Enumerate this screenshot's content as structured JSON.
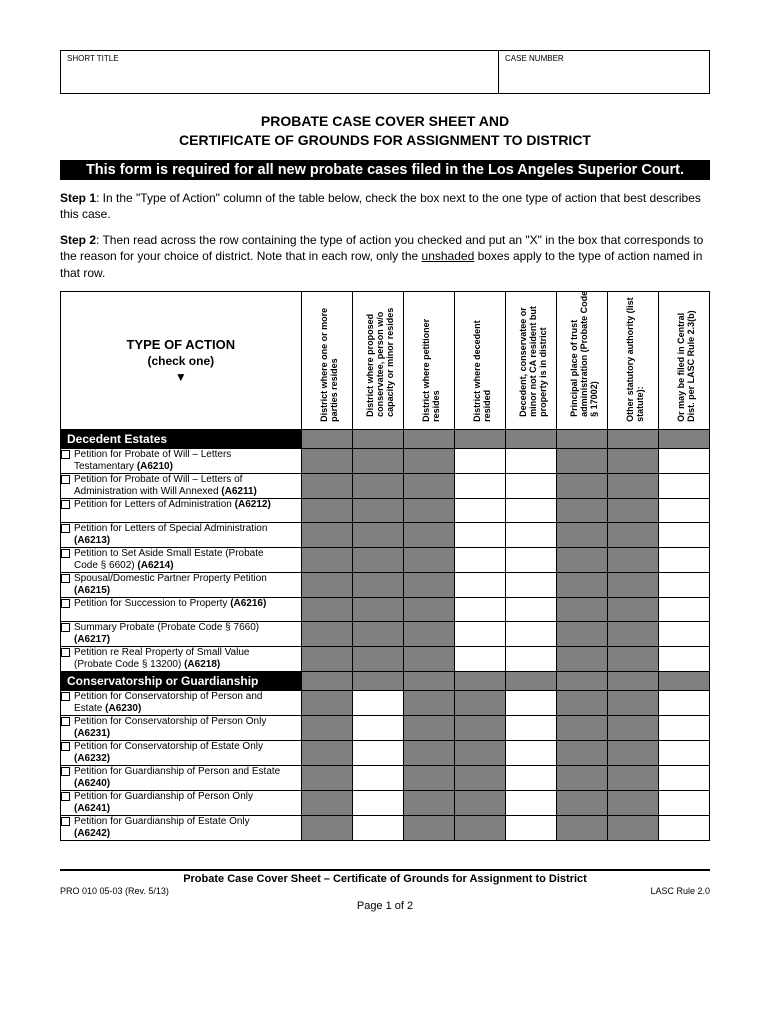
{
  "header": {
    "short_title_label": "SHORT TITLE",
    "case_number_label": "CASE NUMBER"
  },
  "title": {
    "line1": "PROBATE CASE COVER SHEET AND",
    "line2": "CERTIFICATE OF GROUNDS FOR ASSIGNMENT TO DISTRICT"
  },
  "black_bar": "This form is required for all new probate cases filed in the Los Angeles Superior Court.",
  "step1_label": "Step 1",
  "step1_text": ": In the \"Type of Action\" column of the table below, check the box next to the one type of action that best describes this case.",
  "step2_label": "Step 2",
  "step2_text_a": ": Then read across the row containing the type of action you checked and put an \"X\" in the box that corresponds to the reason for your choice of district. Note that in each row, only the ",
  "step2_underline": "unshaded",
  "step2_text_b": " boxes apply to the type of action named in that row.",
  "action_header": {
    "title": "TYPE OF ACTION",
    "sub": "(check one)",
    "arrow": "▼"
  },
  "columns": [
    "District where one or more parties resides",
    "District where proposed conservatee, person w/o capacity or minor resides",
    "District where petitioner resides",
    "District where decedent resided",
    "Decedent, conservatee or minor not CA resident but property is in district",
    "Principal place of trust administration (Probate Code § 17002)",
    "Other statutory authority (list statute):",
    "Or may be filed in Central Dist. per LASC Rule 2.3(b)"
  ],
  "sections": [
    {
      "title": "Decedent Estates",
      "rows": [
        {
          "text": "Petition for Probate of Will – Letters Testamentary ",
          "code": "(A6210)",
          "open": [
            3,
            4,
            7
          ]
        },
        {
          "text": "Petition for Probate of Will – Letters of Administration with Will Annexed ",
          "code": "(A6211)",
          "open": [
            3,
            4,
            7
          ]
        },
        {
          "text": "Petition for Letters of Administration ",
          "code": "(A6212)",
          "open": [
            3,
            4,
            7
          ]
        },
        {
          "text": "Petition for Letters of Special Administration ",
          "code": "(A6213)",
          "open": [
            3,
            4,
            7
          ]
        },
        {
          "text": "Petition to Set Aside Small Estate (Probate Code § 6602) ",
          "code": "(A6214)",
          "open": [
            3,
            4,
            7
          ]
        },
        {
          "text": "Spousal/Domestic Partner Property Petition ",
          "code": "(A6215)",
          "open": [
            3,
            4,
            7
          ]
        },
        {
          "text": "Petition for Succession to Property ",
          "code": "(A6216)",
          "open": [
            3,
            4,
            7
          ]
        },
        {
          "text": "Summary Probate (Probate Code § 7660) ",
          "code": "(A6217)",
          "open": [
            3,
            4,
            7
          ]
        },
        {
          "text": "Petition re Real Property of Small Value (Probate Code § 13200) ",
          "code": "(A6218)",
          "open": [
            3,
            4,
            7
          ]
        }
      ]
    },
    {
      "title": "Conservatorship or Guardianship",
      "rows": [
        {
          "text": "Petition for Conservatorship of Person and Estate ",
          "code": "(A6230)",
          "open": [
            1,
            4,
            7
          ]
        },
        {
          "text": "Petition for Conservatorship of Person Only ",
          "code": "(A6231)",
          "open": [
            1,
            4,
            7
          ]
        },
        {
          "text": "Petition for Conservatorship of Estate Only ",
          "code": "(A6232)",
          "open": [
            1,
            4,
            7
          ]
        },
        {
          "text": "Petition for Guardianship of Person and Estate ",
          "code": "(A6240)",
          "open": [
            1,
            4,
            7
          ]
        },
        {
          "text": "Petition for Guardianship of Person Only ",
          "code": "(A6241)",
          "open": [
            1,
            4,
            7
          ]
        },
        {
          "text": "Petition for Guardianship of Estate Only ",
          "code": "(A6242)",
          "open": [
            1,
            4,
            7
          ]
        }
      ]
    }
  ],
  "footer": {
    "title": "Probate Case Cover Sheet – Certificate of Grounds for Assignment to District",
    "form_no": "PRO 010 05-03 (Rev. 5/13)",
    "rule": "LASC Rule 2.0",
    "page": "Page 1 of 2"
  },
  "colors": {
    "shaded": "#808080",
    "black": "#000000",
    "white": "#ffffff"
  }
}
